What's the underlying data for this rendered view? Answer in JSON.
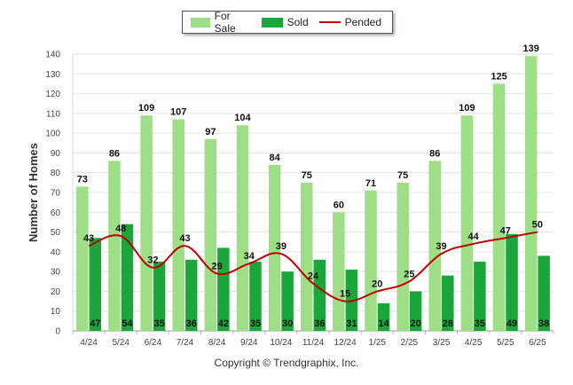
{
  "chart_data": {
    "type": "bar",
    "categories": [
      "4/24",
      "5/24",
      "6/24",
      "7/24",
      "8/24",
      "9/24",
      "10/24",
      "11/24",
      "12/24",
      "1/25",
      "2/25",
      "3/25",
      "4/25",
      "5/25",
      "6/25"
    ],
    "series": [
      {
        "name": "For Sale",
        "kind": "bar",
        "color": "#9ede86",
        "values": [
          73,
          86,
          109,
          107,
          97,
          104,
          84,
          75,
          60,
          71,
          75,
          86,
          109,
          125,
          139
        ]
      },
      {
        "name": "Sold",
        "kind": "bar",
        "color": "#1aa63a",
        "values": [
          47,
          54,
          35,
          36,
          42,
          35,
          30,
          36,
          31,
          14,
          20,
          28,
          35,
          49,
          38
        ]
      },
      {
        "name": "Pended",
        "kind": "line",
        "color": "#c00000",
        "values": [
          43,
          48,
          32,
          43,
          29,
          34,
          39,
          24,
          15,
          20,
          25,
          39,
          44,
          47,
          50
        ]
      }
    ],
    "ylabel": "Number of Homes",
    "xlabel": "",
    "ylim": [
      0,
      140
    ],
    "yticks": [
      0,
      10,
      20,
      30,
      40,
      50,
      60,
      70,
      80,
      90,
      100,
      110,
      120,
      130,
      140
    ],
    "grid": true,
    "legend_position": "top-center"
  },
  "legend": {
    "for_sale": "For Sale",
    "sold": "Sold",
    "pended": "Pended"
  },
  "copyright": "Copyright © Trendgraphix, Inc."
}
